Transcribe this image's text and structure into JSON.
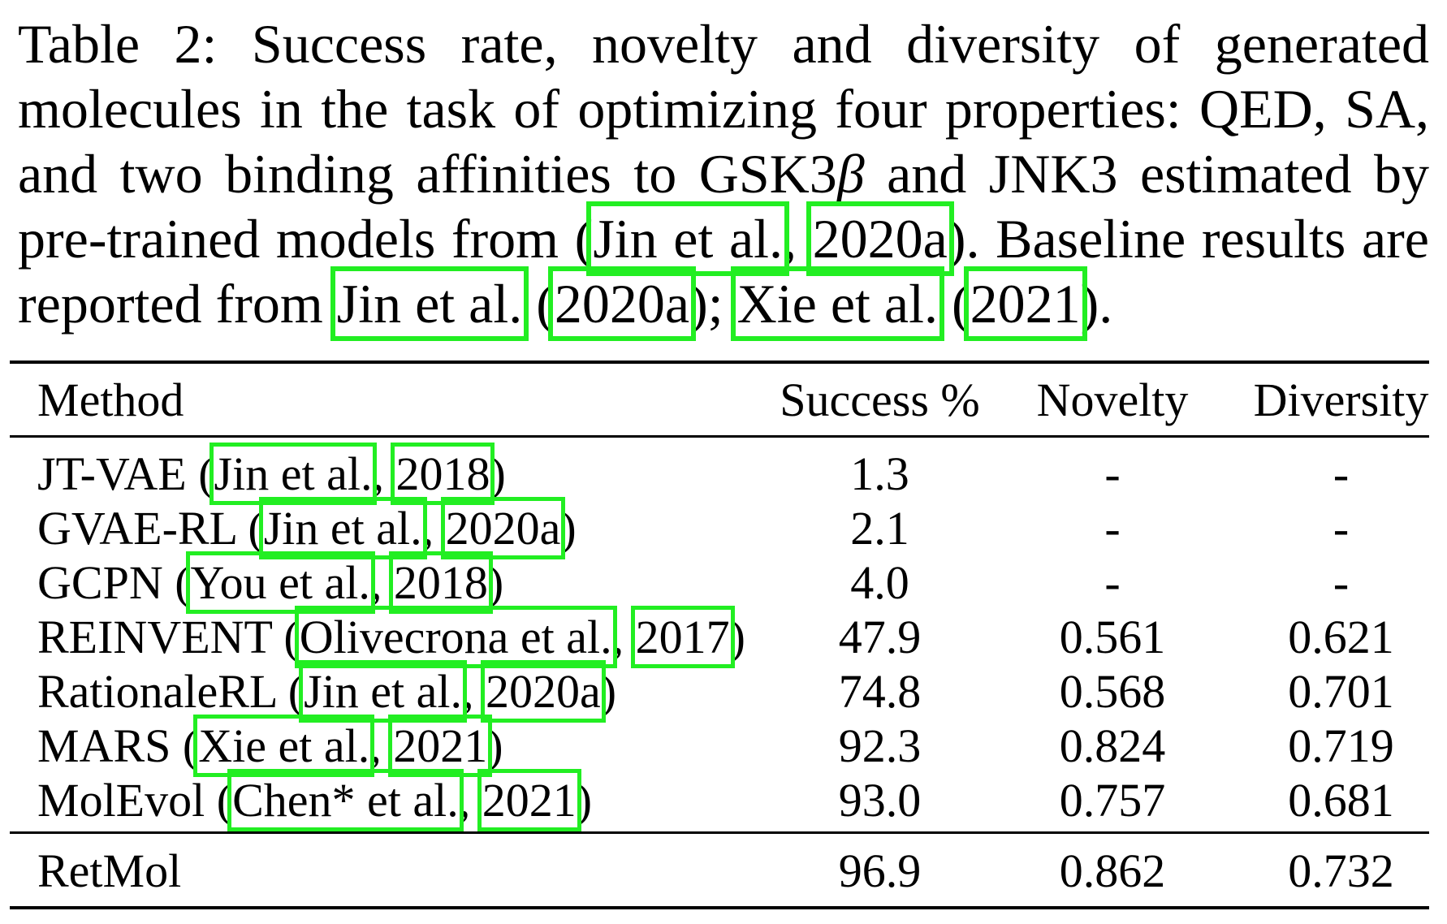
{
  "caption": {
    "lead": "Table 2:",
    "text_a": " Success rate, novelty and diversity of generated molecules in the task of optimizing four properties: QED, SA, and two binding affinities to GSK3",
    "beta": "β",
    "text_b": " and JNK3 estimated by pre-trained models from (",
    "cite1_author": "Jin et al.",
    "cite1_sep": ", ",
    "cite1_year": "2020a",
    "text_c": "). Baseline results are reported from ",
    "cite2_author": "Jin et al.",
    "cite2_open": " (",
    "cite2_year": "2020a",
    "text_d": "); ",
    "cite3_author": "Xie et al.",
    "cite3_open": " (",
    "cite3_year": "2021",
    "text_e": ")."
  },
  "table": {
    "headers": {
      "method": "Method",
      "success": "Success %",
      "novelty": "Novelty",
      "diversity": "Diversity"
    },
    "rows": [
      {
        "name": "JT-VAE",
        "author": "Jin et al.",
        "year": "2018",
        "success": "1.3",
        "novelty": "-",
        "diversity": "-"
      },
      {
        "name": "GVAE-RL",
        "author": "Jin et al.",
        "year": "2020a",
        "success": "2.1",
        "novelty": "-",
        "diversity": "-"
      },
      {
        "name": "GCPN",
        "author": "You et al.",
        "year": "2018",
        "success": "4.0",
        "novelty": "-",
        "diversity": "-"
      },
      {
        "name": "REINVENT",
        "author": "Olivecrona et al.",
        "year": "2017",
        "success": "47.9",
        "novelty": "0.561",
        "diversity": "0.621"
      },
      {
        "name": "RationaleRL",
        "author": "Jin et al.",
        "year": "2020a",
        "success": "74.8",
        "novelty": "0.568",
        "diversity": "0.701"
      },
      {
        "name": "MARS",
        "author": "Xie et al.",
        "year": "2021",
        "success": "92.3",
        "novelty": "0.824",
        "diversity": "0.719"
      },
      {
        "name": "MolEvol",
        "author": "Chen* et al.",
        "year": "2021",
        "success": "93.0",
        "novelty": "0.757",
        "diversity": "0.681"
      }
    ],
    "final": {
      "name": "RetMol",
      "success": "96.9",
      "novelty": "0.862",
      "diversity": "0.732"
    }
  },
  "colors": {
    "citation_box": "#22ee22",
    "text": "#000000",
    "background": "#ffffff"
  }
}
